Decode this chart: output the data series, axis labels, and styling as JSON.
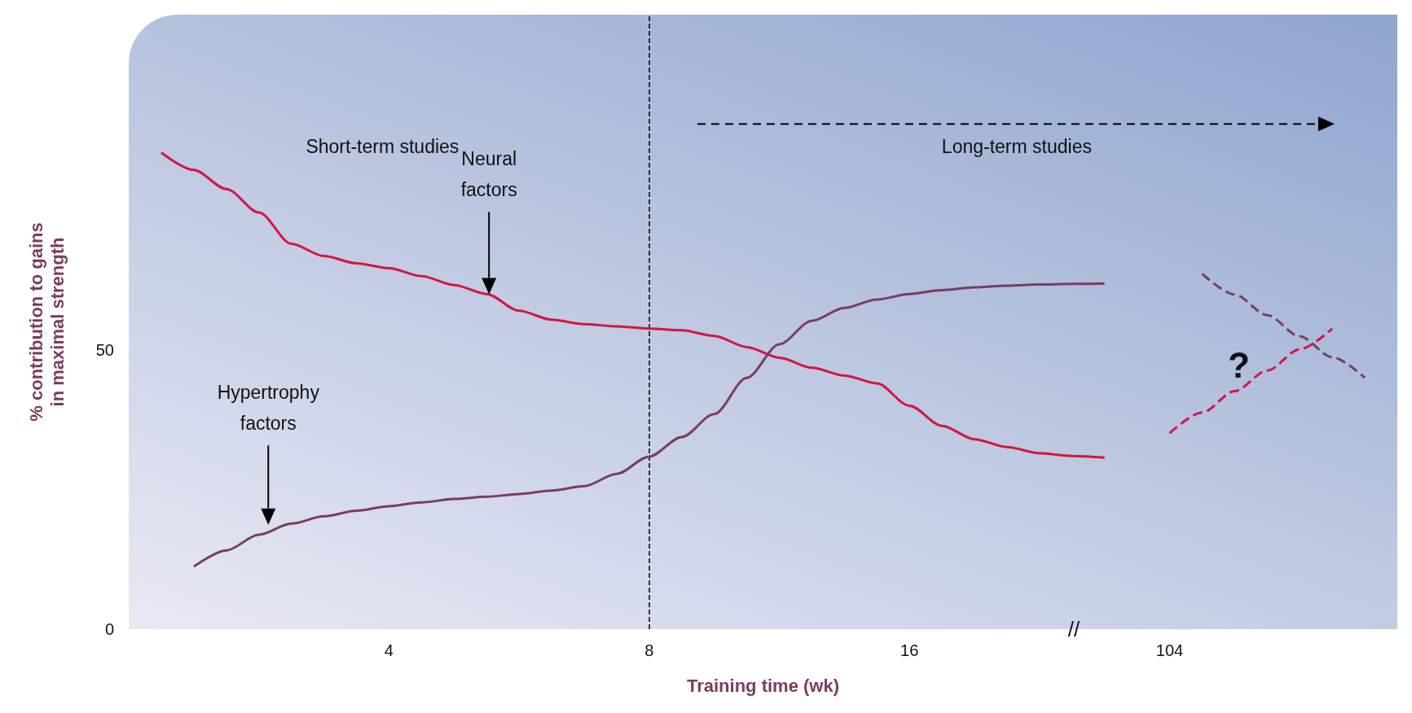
{
  "chart_data": {
    "type": "line",
    "xlabel": "Training time (wk)",
    "ylabel": "% contribution to gains\nin maximal strength",
    "categories": [
      null,
      null,
      null,
      null,
      null,
      null,
      null,
      null,
      "4",
      null,
      null,
      null,
      null,
      null,
      null,
      null,
      "8",
      null,
      null,
      null,
      null,
      null,
      null,
      null,
      "16",
      null,
      null,
      null,
      null,
      null,
      null,
      null,
      "104",
      null,
      null,
      null,
      null,
      null,
      null,
      null
    ],
    "ylim": [
      0,
      110
    ],
    "yticks": [
      0,
      50
    ],
    "series": [
      {
        "color": "#d4163f",
        "values": [
          null,
          85.3,
          82.2,
          78.8,
          74.6,
          69.0,
          66.8,
          65.5,
          64.6,
          63.2,
          61.6,
          60.0,
          57.0,
          55.4,
          54.6,
          54.2,
          53.8,
          53.5,
          52.5,
          50.5,
          48.6,
          46.8,
          45.4,
          44.0,
          40.0,
          36.4,
          34.0,
          32.6,
          31.5,
          31.0,
          30.7,
          null,
          null,
          null,
          null,
          null,
          null,
          null,
          null,
          null
        ]
      },
      {
        "color": "#7b3d5c",
        "values": [
          null,
          null,
          11.2,
          14.1,
          16.9,
          18.9,
          20.2,
          21.2,
          22.0,
          22.7,
          23.3,
          23.7,
          24.2,
          24.8,
          25.6,
          27.8,
          30.9,
          34.4,
          38.5,
          45.0,
          51.0,
          55.2,
          57.5,
          59.0,
          60.0,
          60.7,
          61.2,
          61.5,
          61.7,
          61.8,
          61.9,
          null,
          null,
          null,
          null,
          null,
          null,
          null,
          null,
          null
        ]
      },
      {
        "color": "#d4163f",
        "line_style": "dashed",
        "values": [
          null,
          null,
          null,
          null,
          null,
          null,
          null,
          null,
          null,
          null,
          null,
          null,
          null,
          null,
          null,
          null,
          null,
          null,
          null,
          null,
          null,
          null,
          null,
          null,
          null,
          null,
          null,
          null,
          null,
          null,
          null,
          null,
          35.1,
          38.8,
          42.6,
          46.3,
          50.1,
          53.8,
          null,
          null
        ]
      },
      {
        "color": "#7b3d5c",
        "line_style": "dashed",
        "values": [
          null,
          null,
          null,
          null,
          null,
          null,
          null,
          null,
          null,
          null,
          null,
          null,
          null,
          null,
          null,
          null,
          null,
          null,
          null,
          null,
          null,
          null,
          null,
          null,
          null,
          null,
          null,
          null,
          null,
          null,
          null,
          null,
          null,
          63.6,
          59.9,
          56.2,
          52.4,
          48.7,
          45.0,
          null
        ]
      }
    ],
    "ref_lines": [
      {
        "axis": "x",
        "value": "8",
        "color": "#000000",
        "line_style": "dashed"
      }
    ],
    "annotations": [
      "Neural factors",
      "Hypertrophy factors",
      "Short-term studies",
      "Long-term studies",
      "?",
      "//"
    ]
  }
}
